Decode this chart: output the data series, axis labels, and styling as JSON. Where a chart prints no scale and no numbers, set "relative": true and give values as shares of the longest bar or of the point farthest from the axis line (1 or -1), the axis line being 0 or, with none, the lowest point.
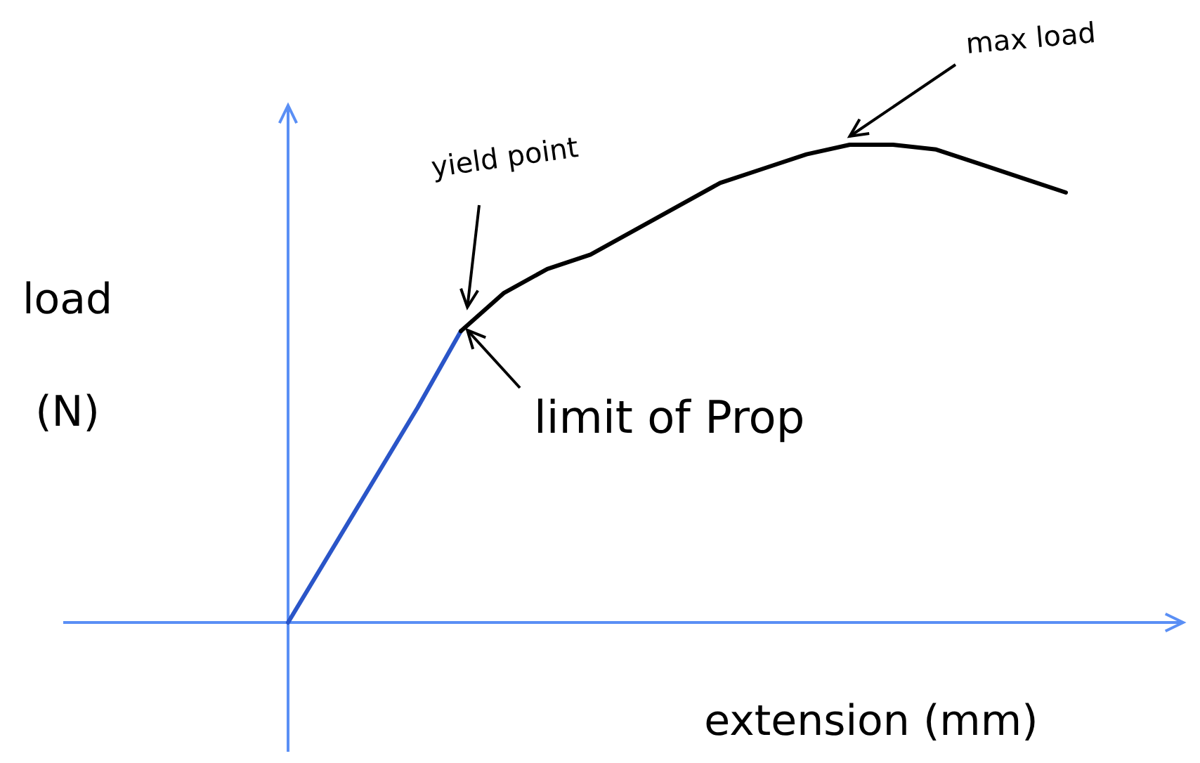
{
  "chart_data": {
    "type": "line",
    "relative": true,
    "xlabel": "extension (mm)",
    "ylabel": "load (N)",
    "categories": [
      null,
      null,
      null,
      null,
      null,
      null,
      null,
      null,
      null,
      null,
      null,
      null,
      null,
      null,
      null,
      null,
      null,
      null,
      null
    ],
    "series": [
      {
        "color": "#2a55c8",
        "values": [
          0,
          0.15,
          0.3,
          0.45,
          0.61,
          null,
          null,
          null,
          null,
          null,
          null,
          null,
          null,
          null,
          null,
          null,
          null,
          null,
          null
        ]
      },
      {
        "color": "#000000",
        "values": [
          null,
          null,
          null,
          null,
          0.61,
          0.69,
          0.74,
          0.77,
          0.82,
          0.87,
          0.92,
          0.95,
          0.98,
          1,
          1,
          0.99,
          0.96,
          0.93,
          0.9
        ]
      }
    ],
    "annotations": [
      "yield point",
      "limit of Prop",
      "max load"
    ],
    "marker": "none",
    "line_style": "solid"
  }
}
